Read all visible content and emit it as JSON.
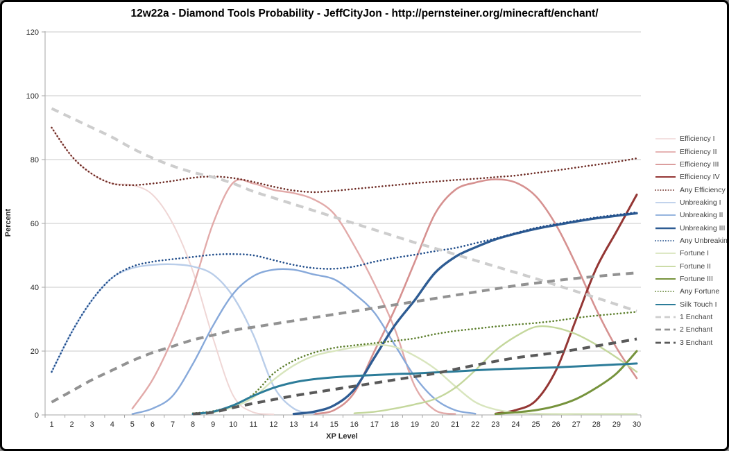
{
  "chart_data": {
    "type": "line",
    "title": "12w22a - Diamond Tools Probability - JeffCityJon - http://pernsteiner.org/minecraft/enchant/",
    "xlabel": "XP Level",
    "ylabel": "Percent",
    "ylim": [
      0,
      120
    ],
    "yticks": [
      0,
      20,
      40,
      60,
      80,
      100,
      120
    ],
    "grid": true,
    "legend_position": "right",
    "x": [
      1,
      2,
      3,
      4,
      5,
      6,
      7,
      8,
      9,
      10,
      11,
      12,
      13,
      14,
      15,
      16,
      17,
      18,
      19,
      20,
      21,
      22,
      23,
      24,
      25,
      26,
      27,
      28,
      29,
      30
    ],
    "series": [
      {
        "name": "Efficiency I",
        "color": "#efd6d5",
        "style": "solid",
        "width": 2,
        "values": [
          90,
          81,
          75.5,
          72.5,
          72,
          69,
          60,
          45,
          24,
          6,
          0.8,
          0.2,
          null,
          null,
          null,
          null,
          null,
          null,
          null,
          null,
          null,
          null,
          null,
          null,
          null,
          null,
          null,
          null,
          null,
          null
        ]
      },
      {
        "name": "Efficiency II",
        "color": "#e2aaa9",
        "style": "solid",
        "width": 2.4,
        "values": [
          null,
          null,
          null,
          null,
          2,
          11,
          24,
          40,
          60,
          72.8,
          72.5,
          70.5,
          69.5,
          67.5,
          63,
          53,
          41,
          27,
          9,
          1.5,
          0.3,
          null,
          null,
          null,
          null,
          null,
          null,
          null,
          null,
          null
        ]
      },
      {
        "name": "Efficiency III",
        "color": "#d69190",
        "style": "solid",
        "width": 2.6,
        "values": [
          null,
          null,
          null,
          null,
          null,
          null,
          null,
          null,
          null,
          null,
          null,
          null,
          null,
          0.3,
          1.5,
          7,
          20,
          33,
          48,
          63,
          70.5,
          72.8,
          73.8,
          72.8,
          68.5,
          59.5,
          47,
          33,
          21,
          11.5
        ]
      },
      {
        "name": "Efficiency IV",
        "color": "#943634",
        "style": "solid",
        "width": 3,
        "values": [
          null,
          null,
          null,
          null,
          null,
          null,
          null,
          null,
          null,
          null,
          null,
          null,
          null,
          null,
          null,
          null,
          null,
          null,
          null,
          null,
          null,
          null,
          0.4,
          1.5,
          4.5,
          14,
          30,
          46,
          57.5,
          69
        ]
      },
      {
        "name": "Any Efficiency",
        "color": "#6d2a23",
        "style": "dotted",
        "width": 2.6,
        "values": [
          90,
          81,
          75.5,
          72.5,
          72,
          72.5,
          73.3,
          74.3,
          74.7,
          74.2,
          73,
          71.5,
          70.3,
          69.8,
          70.2,
          70.8,
          71.4,
          72,
          72.6,
          73.1,
          73.6,
          74,
          74.5,
          75,
          75.8,
          76.6,
          77.5,
          78.4,
          79.3,
          80.4
        ]
      },
      {
        "name": "Unbreaking I",
        "color": "#b9cde9",
        "style": "solid",
        "width": 2.4,
        "values": [
          13.5,
          26,
          36,
          43,
          46,
          47,
          47.2,
          46.5,
          44,
          37,
          25,
          9,
          2,
          0.4,
          null,
          null,
          null,
          null,
          null,
          null,
          null,
          null,
          null,
          null,
          null,
          null,
          null,
          null,
          null,
          null
        ]
      },
      {
        "name": "Unbreaking II",
        "color": "#87a9da",
        "style": "solid",
        "width": 2.4,
        "values": [
          null,
          null,
          null,
          null,
          0.3,
          2,
          6,
          16,
          28,
          38,
          43.5,
          45.5,
          45.5,
          44,
          42.5,
          38,
          32,
          22,
          12,
          5,
          1.5,
          0.4,
          null,
          null,
          null,
          null,
          null,
          null,
          null,
          null
        ]
      },
      {
        "name": "Unbreaking III",
        "color": "#2e5c93",
        "style": "solid",
        "width": 3.4,
        "values": [
          null,
          null,
          null,
          null,
          null,
          null,
          null,
          null,
          null,
          null,
          null,
          null,
          0.3,
          1,
          3,
          8,
          18,
          28,
          36,
          44.5,
          49.5,
          52.5,
          55,
          56.8,
          58.3,
          59.5,
          60.6,
          61.6,
          62.4,
          63.2
        ]
      },
      {
        "name": "Any Unbreaking",
        "color": "#1f4c8a",
        "style": "dotted",
        "width": 2.6,
        "values": [
          13.5,
          26,
          36,
          43,
          46.5,
          48,
          48.8,
          49.5,
          50.2,
          50.4,
          50,
          48.5,
          47,
          46,
          45.8,
          46.5,
          48,
          49.2,
          50.2,
          51.3,
          52.3,
          53.8,
          55.3,
          57,
          58.6,
          59.8,
          60.9,
          61.9,
          62.7,
          63.5
        ]
      },
      {
        "name": "Fortune I",
        "color": "#d8e5bd",
        "style": "solid",
        "width": 2.4,
        "values": [
          null,
          null,
          null,
          null,
          null,
          null,
          null,
          0.3,
          0.8,
          2.5,
          5.5,
          11,
          15.5,
          18.5,
          20,
          21.2,
          22,
          21.3,
          18.5,
          14.5,
          9,
          4,
          1.7,
          0.7,
          0.4,
          0.3,
          0.3,
          0.3,
          0.3,
          0.3
        ]
      },
      {
        "name": "Fortune II",
        "color": "#c4d79c",
        "style": "solid",
        "width": 2.4,
        "values": [
          null,
          null,
          null,
          null,
          null,
          null,
          null,
          null,
          null,
          null,
          null,
          null,
          null,
          null,
          null,
          0.5,
          1,
          2,
          3.3,
          5,
          8.5,
          14,
          20.2,
          24.6,
          27.6,
          27.3,
          25.3,
          22,
          18,
          13.5
        ]
      },
      {
        "name": "Fortune III",
        "color": "#76933c",
        "style": "solid",
        "width": 3,
        "values": [
          null,
          null,
          null,
          null,
          null,
          null,
          null,
          null,
          null,
          null,
          null,
          null,
          null,
          null,
          null,
          null,
          null,
          null,
          null,
          null,
          null,
          null,
          0.3,
          0.8,
          1.5,
          2.8,
          5,
          8.5,
          13,
          20
        ]
      },
      {
        "name": "Any Fortune",
        "color": "#5d7f2d",
        "style": "dotted",
        "width": 2.6,
        "values": [
          null,
          null,
          null,
          null,
          null,
          null,
          null,
          0.5,
          1.2,
          3,
          6.5,
          13,
          17,
          19.5,
          21,
          21.8,
          22.5,
          23.2,
          24,
          25.3,
          26.3,
          27,
          27.7,
          28.3,
          28.8,
          29.5,
          30.4,
          31.1,
          31.7,
          32.3
        ]
      },
      {
        "name": "Silk Touch I",
        "color": "#2c7c99",
        "style": "solid",
        "width": 3,
        "values": [
          null,
          null,
          null,
          null,
          null,
          null,
          null,
          0.3,
          1,
          3,
          6,
          8.5,
          10.2,
          11.2,
          11.8,
          12.2,
          12.5,
          12.8,
          13,
          13.3,
          13.6,
          14,
          14.3,
          14.5,
          14.7,
          14.9,
          15.2,
          15.5,
          15.8,
          16.1
        ]
      },
      {
        "name": "1 Enchant",
        "color": "#cdcdcd",
        "style": "dashed",
        "width": 4,
        "values": [
          96,
          93,
          90,
          87,
          83.5,
          80.5,
          78,
          76,
          74.5,
          72.5,
          70,
          68,
          66,
          64,
          62,
          60,
          58,
          56,
          54,
          52.2,
          50.3,
          48.4,
          46.5,
          44.6,
          42.7,
          40.7,
          38.7,
          36.7,
          34.6,
          32.5
        ]
      },
      {
        "name": "2 Enchant",
        "color": "#929292",
        "style": "dashed",
        "width": 4,
        "values": [
          4,
          7.5,
          11,
          14,
          17,
          19.5,
          21.5,
          23.5,
          25,
          26.5,
          27.5,
          28.5,
          29.5,
          30.5,
          31.5,
          32.5,
          33.5,
          34.5,
          35.5,
          36.5,
          37.5,
          38.5,
          39.5,
          40.5,
          41.3,
          42.1,
          42.8,
          43.4,
          44,
          44.5
        ]
      },
      {
        "name": "3 Enchant",
        "color": "#595959",
        "style": "dashed",
        "width": 4,
        "values": [
          null,
          null,
          null,
          null,
          null,
          null,
          null,
          0.3,
          0.8,
          2.3,
          3.6,
          4.8,
          6,
          7,
          8,
          9,
          10,
          11,
          12,
          13,
          14.3,
          15.6,
          16.8,
          17.9,
          18.7,
          19.5,
          20.5,
          21.6,
          22.7,
          23.8
        ]
      }
    ]
  }
}
